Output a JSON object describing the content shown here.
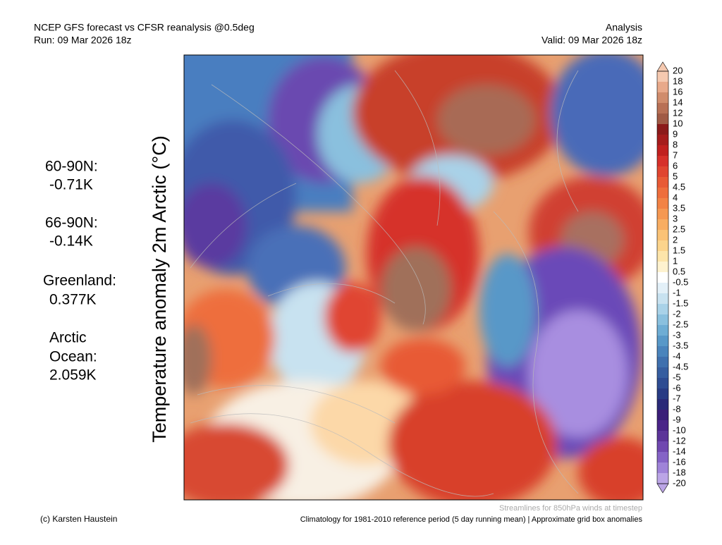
{
  "header": {
    "title": "NCEP GFS forecast vs CFSR reanalysis @0.5deg",
    "run": "Run: 09 Mar 2026 18z",
    "kind": "Analysis",
    "valid": "Valid: 09 Mar 2026 18z"
  },
  "vertical_title": "Temperature anomaly 2m Arctic (°C)",
  "stats": [
    {
      "label": "60-90N:",
      "value": "-0.71K"
    },
    {
      "label": "66-90N:",
      "value": "-0.14K"
    },
    {
      "label": "Greenland:",
      "value": "0.377K"
    },
    {
      "label": "Arctic",
      "label2": "Ocean:",
      "value": "2.059K"
    }
  ],
  "colorbar": {
    "labels": [
      20,
      18,
      16,
      14,
      12,
      10,
      9,
      8,
      7,
      6,
      5,
      4.5,
      4,
      3.5,
      3,
      2.5,
      2,
      1.5,
      1,
      0.5,
      -0.5,
      -1,
      -1.5,
      -2,
      -2.5,
      -3,
      -3.5,
      -4,
      -4.5,
      -5,
      -6,
      -7,
      -8,
      -9,
      -10,
      -12,
      -14,
      -16,
      -18,
      -20
    ],
    "colors": [
      "#f5c9b0",
      "#e8a98a",
      "#d08c6c",
      "#b87055",
      "#a05a45",
      "#8b1a1a",
      "#a51c1c",
      "#c0201f",
      "#d6302a",
      "#e04530",
      "#e85a35",
      "#ee6e3c",
      "#f28345",
      "#f59852",
      "#f8ad62",
      "#fac276",
      "#fcd48c",
      "#fde5aa",
      "#fef2cf",
      "#ffffff",
      "#e3f0f8",
      "#c8e2f0",
      "#a9d2e8",
      "#8ac0de",
      "#6eadd4",
      "#5898c8",
      "#4a84bc",
      "#3f70ae",
      "#365ea0",
      "#2e4c92",
      "#283b84",
      "#2a2a78",
      "#3a1e78",
      "#4a2488",
      "#5c3499",
      "#7048b0",
      "#8563c6",
      "#9f83d8",
      "#bba5e6"
    ]
  },
  "footer": {
    "streamlines": "Streamlines for 850hPa winds at timestep",
    "credit": "(c) Karsten Haustein",
    "climatology": "Climatology for 1981-2010 reference period (5 day running mean) | Approximate grid box anomalies"
  }
}
